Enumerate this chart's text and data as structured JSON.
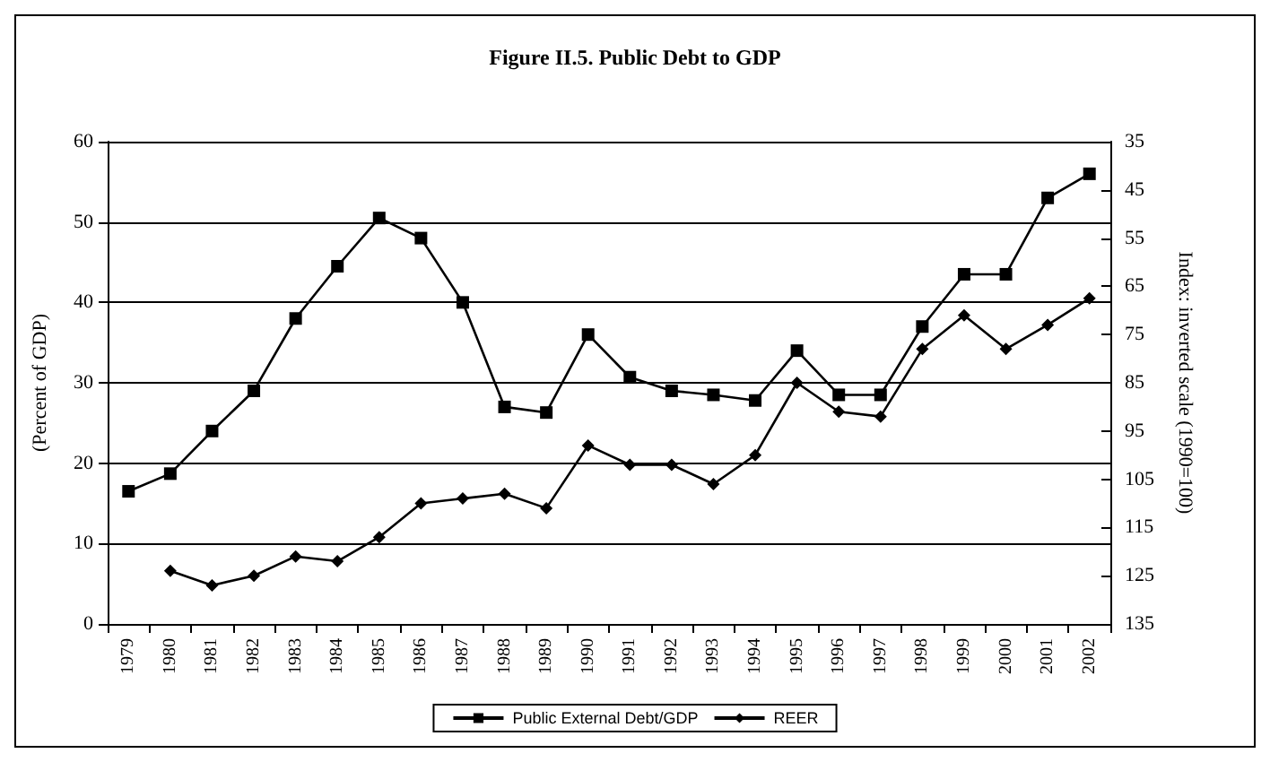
{
  "chart_data": {
    "type": "line",
    "title": "Figure II.5. Public Debt to GDP",
    "ylabel": "(Percent of GDP)",
    "y2label": "Index: inverted scale (1990=100)",
    "categories": [
      "1979",
      "1980",
      "1981",
      "1982",
      "1983",
      "1984",
      "1985",
      "1986",
      "1987",
      "1988",
      "1989",
      "1990",
      "1991",
      "1992",
      "1993",
      "1994",
      "1995",
      "1996",
      "1997",
      "1998",
      "1999",
      "2000",
      "2001",
      "2002"
    ],
    "series": [
      {
        "name": "Public External Debt/GDP",
        "color": "#000000",
        "marker": "square",
        "values": [
          16.5,
          18.7,
          24,
          29,
          38,
          44.5,
          50.5,
          48,
          40,
          27,
          26.3,
          36,
          30.7,
          29,
          28.5,
          27.8,
          34,
          28.5,
          28.5,
          37,
          43.5,
          43.5,
          53,
          56
        ]
      },
      {
        "name": "REER",
        "color": "#000000",
        "marker": "diamond",
        "axis": "y2",
        "values": [
          null,
          124,
          127,
          125,
          121,
          122,
          117,
          110,
          109,
          108,
          111,
          98,
          102,
          102,
          106,
          100,
          85,
          91,
          92,
          78,
          71,
          78,
          73,
          67.5
        ]
      }
    ],
    "ylim": [
      0,
      60
    ],
    "yticks": [
      0,
      10,
      20,
      30,
      40,
      50,
      60
    ],
    "y2lim": [
      135,
      35
    ],
    "y2ticks": [
      135,
      125,
      115,
      105,
      95,
      85,
      75,
      65,
      55,
      45,
      35
    ],
    "grid": "y",
    "legend": "bottom",
    "line_style": "solid"
  }
}
